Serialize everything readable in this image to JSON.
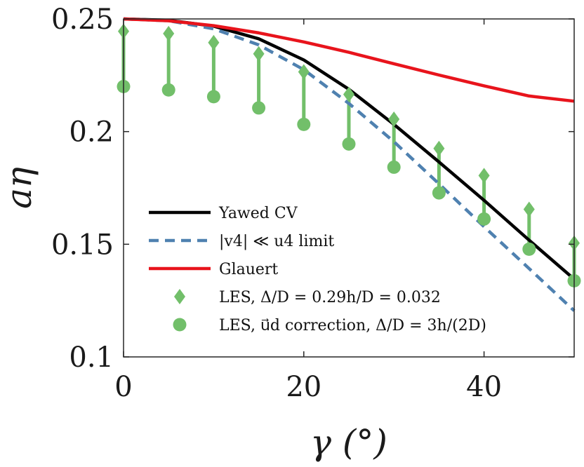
{
  "chart_data": {
    "type": "line",
    "xlabel": "γ (°)",
    "ylabel": "aη",
    "xlim": [
      0,
      50
    ],
    "ylim": [
      0.1,
      0.25
    ],
    "xticks": [
      0,
      20,
      40
    ],
    "xtick_labels": [
      "0",
      "20",
      "40"
    ],
    "yticks": [
      0.1,
      0.15,
      0.2,
      0.25
    ],
    "ytick_labels": [
      "0.1",
      "0.15",
      "0.2",
      "0.25"
    ],
    "legend_position": "bottom-right",
    "series": [
      {
        "name": "Yawed CV",
        "style": "solid",
        "color": "#000000",
        "x": [
          0,
          5,
          10,
          15,
          20,
          25,
          30,
          35,
          40,
          45,
          50
        ],
        "y": [
          0.25,
          0.2494,
          0.2468,
          0.2412,
          0.2318,
          0.2188,
          0.2032,
          0.1865,
          0.1695,
          0.1518,
          0.1345
        ]
      },
      {
        "name": "|v4| ≪ u4 limit",
        "style": "dashed",
        "color": "#4f81b0",
        "x": [
          0,
          5,
          10,
          15,
          20,
          25,
          30,
          35,
          40,
          45,
          50
        ],
        "y": [
          0.25,
          0.2492,
          0.2456,
          0.2385,
          0.2275,
          0.2125,
          0.1955,
          0.1768,
          0.1578,
          0.1392,
          0.1205
        ]
      },
      {
        "name": "Glauert",
        "style": "solid",
        "color": "#e8141c",
        "x": [
          0,
          5,
          10,
          15,
          20,
          25,
          30,
          35,
          40,
          45,
          50
        ],
        "y": [
          0.25,
          0.2492,
          0.247,
          0.2438,
          0.2398,
          0.2352,
          0.2301,
          0.2251,
          0.2203,
          0.2158,
          0.2135
        ]
      },
      {
        "name": "LES,  Δ/D = 0.29h/D = 0.032",
        "marker": "diamond",
        "color": "#72bf6a",
        "x": [
          0,
          5,
          10,
          15,
          20,
          25,
          30,
          35,
          40,
          45,
          50
        ],
        "y": [
          0.2445,
          0.2435,
          0.2395,
          0.2345,
          0.2265,
          0.2165,
          0.2055,
          0.1925,
          0.1805,
          0.1655,
          0.1505
        ]
      },
      {
        "name": "LES,  u⃗d correction,  Δ/D = 3h/(2D)",
        "marker": "circle",
        "color": "#72bf6a",
        "x": [
          0,
          5,
          10,
          15,
          20,
          25,
          30,
          35,
          40,
          45,
          50
        ],
        "y": [
          0.22,
          0.2185,
          0.2155,
          0.2105,
          0.2032,
          0.1945,
          0.1842,
          0.1728,
          0.1612,
          0.1478,
          0.1338
        ]
      }
    ]
  }
}
